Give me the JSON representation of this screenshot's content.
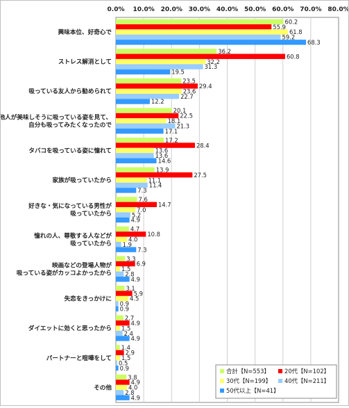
{
  "chart_data": {
    "type": "bar",
    "orientation": "horizontal",
    "xlim": [
      0,
      80
    ],
    "tick_step": 10,
    "tick_labels": [
      "0.0%",
      "10.0%",
      "20.0%",
      "30.0%",
      "40.0%",
      "50.0%",
      "60.0%",
      "70.0%",
      "80.0%"
    ],
    "grid": true,
    "legend_position": "bottom-right",
    "categories": [
      [
        "興味本位、好奇心で"
      ],
      [
        "ストレス解消として"
      ],
      [
        "吸っている友人から勧められて"
      ],
      [
        "他人が美味しそうに吸っている姿を見て、",
        "自分も吸ってみたくなったので"
      ],
      [
        "タバコを吸っている姿に憧れて"
      ],
      [
        "家族が吸っていたから"
      ],
      [
        "好きな・気になっている男性が",
        "吸っていたから"
      ],
      [
        "憧れの人、尊敬する人などが",
        "吸っていたから"
      ],
      [
        "映画などの登場人物が",
        "吸っている姿がカッコよかったから"
      ],
      [
        "失恋をきっかけに"
      ],
      [
        "ダイエットに効くと思ったから"
      ],
      [
        "パートナーと喧嘩をして"
      ],
      [
        "その他"
      ]
    ],
    "series": [
      {
        "name": "合計【N=553】",
        "color": "#ccff66",
        "values": [
          60.2,
          36.2,
          23.5,
          20.1,
          17.2,
          13.9,
          7.6,
          4.7,
          3.3,
          3.1,
          2.7,
          1.4,
          3.8
        ]
      },
      {
        "name": "20代【N=102】",
        "color": "#ff0000",
        "values": [
          55.9,
          60.8,
          29.4,
          22.5,
          28.4,
          27.5,
          14.7,
          10.8,
          6.9,
          5.9,
          4.9,
          2.9,
          4.9
        ]
      },
      {
        "name": "30代【N=199】",
        "color": "#ffff66",
        "values": [
          61.8,
          32.2,
          23.6,
          18.1,
          13.6,
          11.1,
          7.0,
          4.0,
          1.5,
          4.5,
          1.5,
          1.5,
          4.0
        ]
      },
      {
        "name": "40代【N=211】",
        "color": "#99ccff",
        "values": [
          59.2,
          31.3,
          22.7,
          21.3,
          13.6,
          11.4,
          5.2,
          1.9,
          2.8,
          0.9,
          2.4,
          0.5,
          2.8
        ]
      },
      {
        "name": "50代以上【N=41】",
        "color": "#3399ff",
        "values": [
          68.3,
          19.5,
          12.2,
          17.1,
          14.6,
          7.3,
          4.9,
          7.3,
          4.9,
          0.9,
          4.9,
          0.9,
          4.9
        ]
      }
    ]
  }
}
